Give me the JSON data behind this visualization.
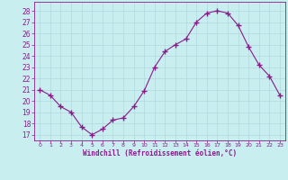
{
  "x": [
    0,
    1,
    2,
    3,
    4,
    5,
    6,
    7,
    8,
    9,
    10,
    11,
    12,
    13,
    14,
    15,
    16,
    17,
    18,
    19,
    20,
    21,
    22,
    23
  ],
  "y": [
    21.0,
    20.5,
    19.5,
    19.0,
    17.7,
    17.0,
    17.5,
    18.3,
    18.5,
    19.5,
    20.9,
    23.0,
    24.4,
    25.0,
    25.5,
    27.0,
    27.8,
    28.0,
    27.8,
    26.7,
    24.8,
    23.2,
    22.2,
    20.5
  ],
  "line_color": "#8b1a8b",
  "marker": "+",
  "marker_size": 4,
  "bg_color": "#c8eef0",
  "grid_color": "#b0d8dc",
  "xlabel": "Windchill (Refroidissement éolien,°C)",
  "xlabel_color": "#8b1a8b",
  "tick_color": "#8b1a8b",
  "spine_color": "#8b1a8b",
  "ylim": [
    16.5,
    28.8
  ],
  "xlim": [
    -0.5,
    23.5
  ],
  "yticks": [
    17,
    18,
    19,
    20,
    21,
    22,
    23,
    24,
    25,
    26,
    27,
    28
  ],
  "xticks": [
    0,
    1,
    2,
    3,
    4,
    5,
    6,
    7,
    8,
    9,
    10,
    11,
    12,
    13,
    14,
    15,
    16,
    17,
    18,
    19,
    20,
    21,
    22,
    23
  ],
  "xtick_labels": [
    "0",
    "1",
    "2",
    "3",
    "4",
    "5",
    "6",
    "7",
    "8",
    "9",
    "10",
    "11",
    "12",
    "13",
    "14",
    "15",
    "16",
    "17",
    "18",
    "19",
    "20",
    "21",
    "22",
    "23"
  ]
}
